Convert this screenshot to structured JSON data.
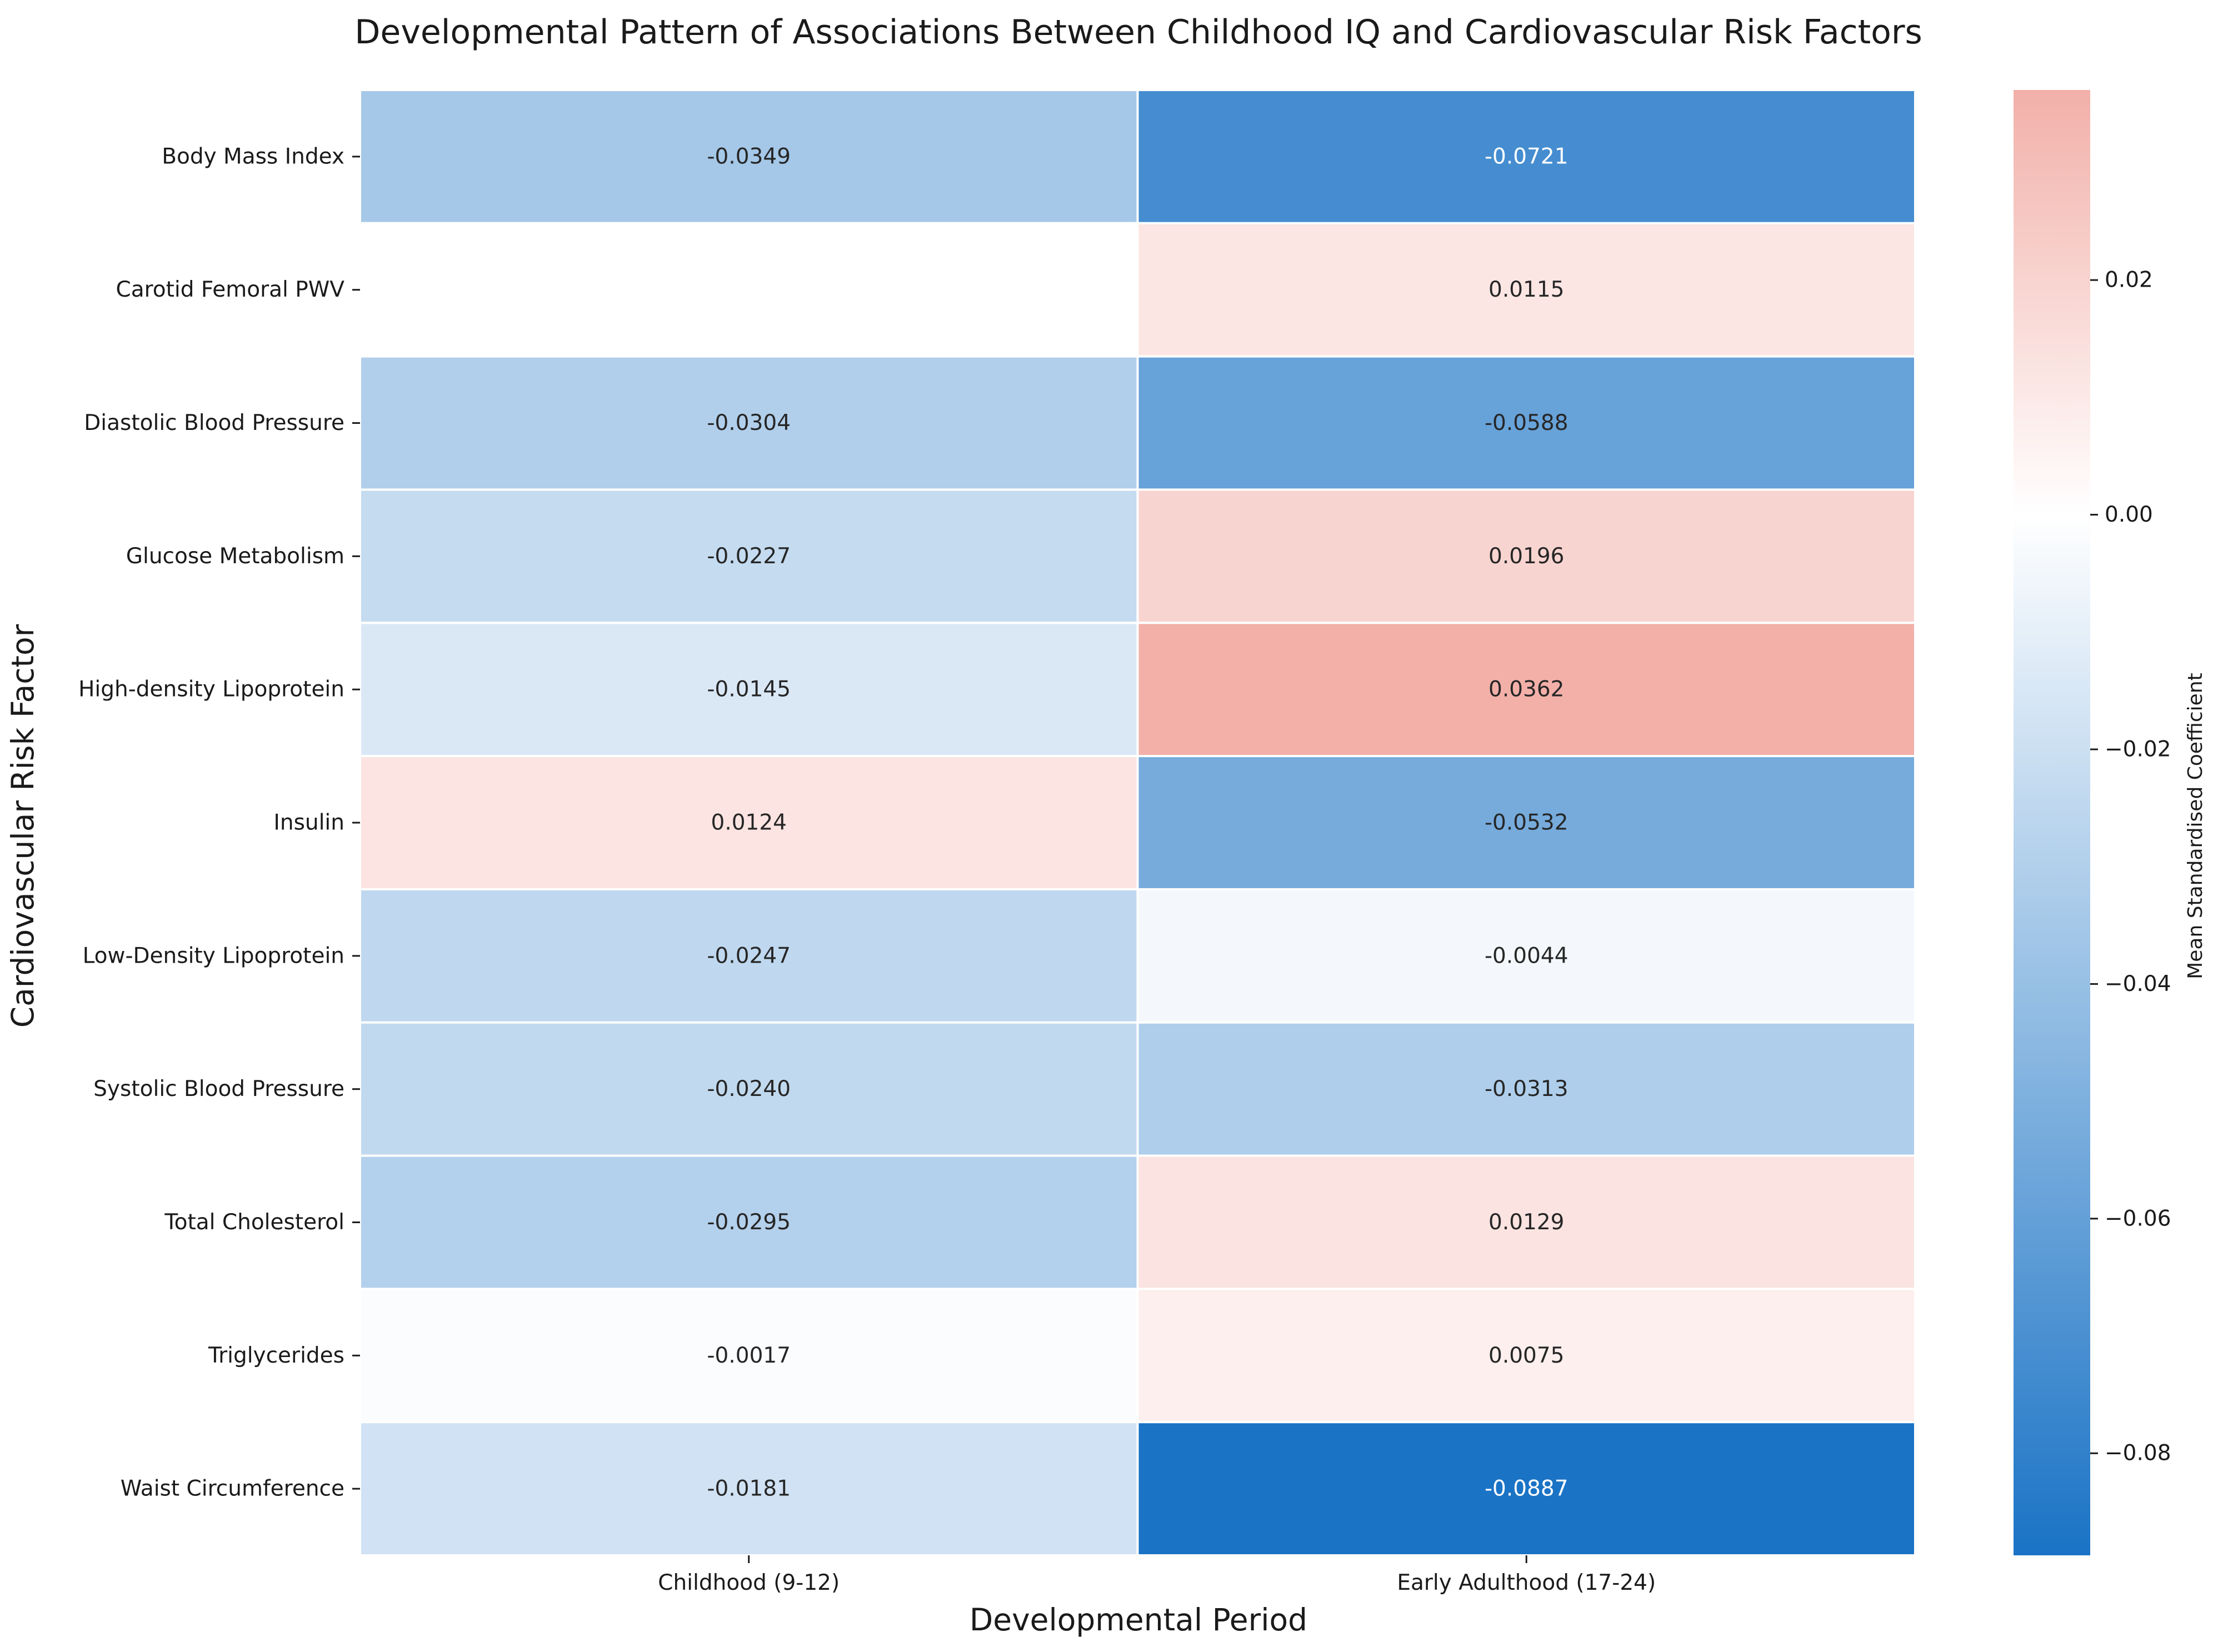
{
  "chart_data": {
    "type": "heatmap",
    "title": "Developmental Pattern of Associations Between Childhood IQ and Cardiovascular Risk Factors",
    "xlabel": "Developmental Period",
    "ylabel": "Cardiovascular Risk Factor",
    "colorbar_label": "Mean Standardised Coefficient",
    "columns": [
      "Childhood (9-12)",
      "Early Adulthood (17-24)"
    ],
    "rows": [
      "Body Mass Index",
      "Carotid Femoral PWV",
      "Diastolic Blood Pressure",
      "Glucose Metabolism",
      "High-density Lipoprotein",
      "Insulin",
      "Low-Density Lipoprotein",
      "Systolic Blood Pressure",
      "Total Cholesterol",
      "Triglycerides",
      "Waist Circumference"
    ],
    "values": [
      [
        -0.0349,
        -0.0721
      ],
      [
        null,
        0.0115
      ],
      [
        -0.0304,
        -0.0588
      ],
      [
        -0.0227,
        0.0196
      ],
      [
        -0.0145,
        0.0362
      ],
      [
        0.0124,
        -0.0532
      ],
      [
        -0.0247,
        -0.0044
      ],
      [
        -0.024,
        -0.0313
      ],
      [
        -0.0295,
        0.0129
      ],
      [
        -0.0017,
        0.0075
      ],
      [
        -0.0181,
        -0.0887
      ]
    ],
    "value_format": "4 decimals",
    "color_range": [
      -0.0887,
      0.0362
    ],
    "colorbar_ticks": [
      0.02,
      0.0,
      -0.02,
      -0.04,
      -0.06,
      -0.08
    ],
    "colorbar_tick_labels": [
      "0.02",
      "0.00",
      "−0.02",
      "−0.04",
      "−0.06",
      "−0.08"
    ],
    "colormap": {
      "negative": "#1a73c5",
      "zero": "#ffffff",
      "positive": "#f2b0a9"
    },
    "missing_cell_color": "#ffffff",
    "grid": true,
    "legend": "colorbar-right"
  }
}
